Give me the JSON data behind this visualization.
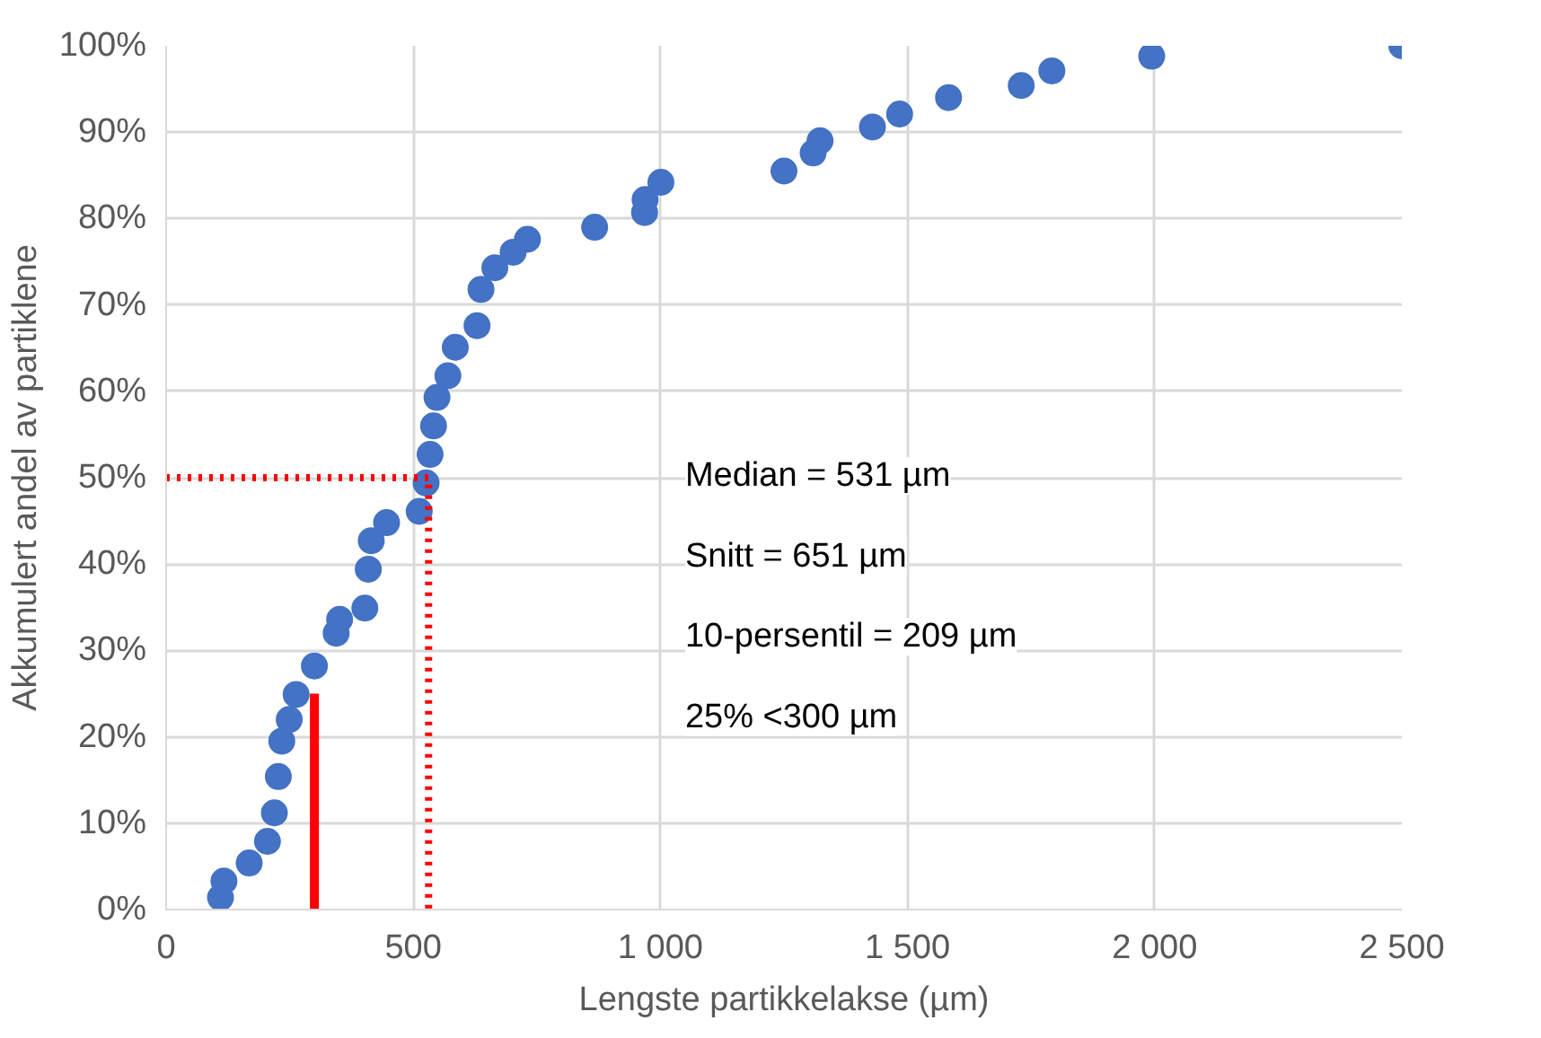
{
  "chart_data": {
    "type": "scatter",
    "xlabel": "Lengste partikkelakse (µm)",
    "ylabel": "Akkumulert andel av partiklene",
    "xlim": [
      0,
      2500
    ],
    "ylim": [
      0,
      100
    ],
    "xticks": [
      0,
      500,
      {
        "value": 1000,
        "label": "1 000"
      },
      {
        "value": 1500,
        "label": "1 500"
      },
      {
        "value": 2000,
        "label": "2 000"
      },
      {
        "value": 2500,
        "label": "2 500"
      }
    ],
    "yticks": [
      {
        "value": 0,
        "label": "0%"
      },
      {
        "value": 10,
        "label": "10%"
      },
      {
        "value": 20,
        "label": "20%"
      },
      {
        "value": 30,
        "label": "30%"
      },
      {
        "value": 40,
        "label": "40%"
      },
      {
        "value": 50,
        "label": "50%"
      },
      {
        "value": 60,
        "label": "60%"
      },
      {
        "value": 70,
        "label": "70%"
      },
      {
        "value": 80,
        "label": "80%"
      },
      {
        "value": 90,
        "label": "90%"
      },
      {
        "value": 100,
        "label": "100%"
      }
    ],
    "grid": true,
    "marker": "circle",
    "series": [
      {
        "color": "#4472c4",
        "x": [
          110,
          117,
          168,
          205,
          219,
          227,
          234,
          249,
          263,
          300,
          344,
          351,
          402,
          409,
          415,
          446,
          512,
          526,
          534,
          541,
          548,
          570,
          585,
          629,
          637,
          665,
          702,
          731,
          867,
          968,
          969,
          1001,
          1250,
          1309,
          1323,
          1429,
          1484,
          1583,
          1730,
          1792,
          1994,
          2500
        ],
        "values": [
          1.4,
          3.3,
          5.4,
          7.9,
          11.2,
          15.4,
          19.5,
          22,
          24.9,
          28.2,
          32,
          33.6,
          34.9,
          39.4,
          42.7,
          44.8,
          46.1,
          49.4,
          52.7,
          56,
          59.3,
          61.8,
          65.1,
          67.6,
          71.8,
          74.3,
          76.1,
          77.6,
          79,
          80.7,
          82.2,
          84.2,
          85.5,
          87.6,
          89,
          90.6,
          92.1,
          94,
          95.4,
          97.1,
          98.8,
          100
        ]
      },
      {
        "type": "line",
        "color": "#ff0000",
        "line_style": "dotted",
        "marker": "none",
        "x": [
          0,
          531,
          531
        ],
        "values": [
          50,
          50,
          0
        ]
      },
      {
        "type": "line",
        "color": "#ff0000",
        "line_style": "solid",
        "marker": "none",
        "x": [
          300,
          300
        ],
        "values": [
          0,
          25
        ]
      }
    ],
    "annotations": [
      "Median = 531 µm",
      "Snitt = 651 µm",
      "10-persentil = 209 µm",
      "25% <300 µm"
    ]
  }
}
